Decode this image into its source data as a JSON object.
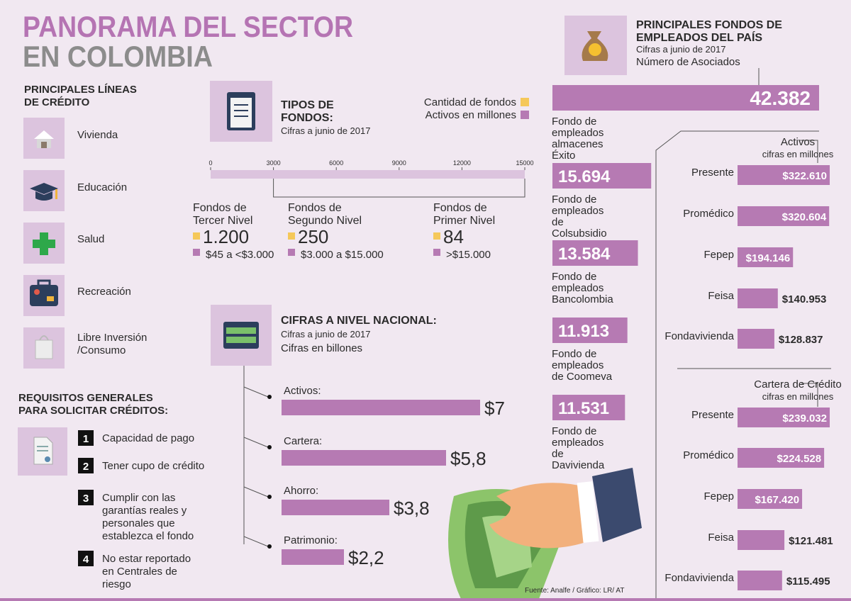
{
  "header": {
    "title": "PANORAMA DEL SECTOR",
    "subtitle": "EN COLOMBIA"
  },
  "credit_lines": {
    "title": [
      "PRINCIPALES LÍNEAS",
      "DE CRÉDITO"
    ],
    "items": [
      [
        "Vivienda"
      ],
      [
        "Educación"
      ],
      [
        "Salud"
      ],
      [
        "Recreación"
      ],
      [
        "Libre Inversión",
        "/Consumo"
      ]
    ]
  },
  "requirements": {
    "title": [
      "REQUISITOS GENERALES",
      "PARA SOLICITAR CRÉDITOS:"
    ],
    "items": [
      {
        "number": "1",
        "lines": [
          "Capacidad de pago"
        ]
      },
      {
        "number": "2",
        "lines": [
          "Tener cupo de crédito"
        ]
      },
      {
        "number": "3",
        "lines": [
          "Cumplir con las",
          "garantías reales y",
          "personales que",
          "establezca el fondo"
        ]
      },
      {
        "number": "4",
        "lines": [
          "No estar reportado",
          "en Centrales de",
          "riesgo"
        ]
      }
    ]
  },
  "fund_types": {
    "title": [
      "TIPOS DE",
      "FONDOS:"
    ],
    "subtitle": "Cifras a junio de 2017",
    "legend": [
      {
        "name": "Cantidad de fondos",
        "color": "#f5c85a"
      },
      {
        "name": "Activos en millones",
        "color": "#b67ab3"
      }
    ],
    "xlim": [
      0,
      15000
    ],
    "xticks": [
      0,
      3000,
      6000,
      9000,
      12000,
      15000
    ],
    "groups": [
      {
        "name": [
          "Fondos de",
          "Tercer Nivel"
        ],
        "count": "1.200",
        "range": "$45 a <$3.000"
      },
      {
        "name": [
          "Fondos de",
          "Segundo Nivel"
        ],
        "count": "250",
        "range": "$3.000 a $15.000"
      },
      {
        "name": [
          "Fondos de",
          "Primer Nivel"
        ],
        "count": "84",
        "range": ">$15.000"
      }
    ]
  },
  "national": {
    "title": "CIFRAS A NIVEL NACIONAL:",
    "subtitle": [
      "Cifras a junio de 2017",
      "Cifras en billones"
    ],
    "items": [
      {
        "name": "Activos:",
        "value": 7,
        "value_label": "$7"
      },
      {
        "name": "Cartera:",
        "value": 5.8,
        "value_label": "$5,8"
      },
      {
        "name": "Ahorro:",
        "value": 3.8,
        "value_label": "$3,8"
      },
      {
        "name": "Patrimonio:",
        "value": 2.2,
        "value_label": "$2,2"
      }
    ]
  },
  "employee_funds": {
    "title": [
      "PRINCIPALES FONDOS DE",
      "EMPLEADOS DEL PAÍS"
    ],
    "subtitle": "Cifras a junio de 2017",
    "metric": "Número de Asociados",
    "items": [
      {
        "value": 42382,
        "value_label": "42.382",
        "name": [
          "Fondo de",
          "empleados",
          "almacenes",
          "Éxito"
        ]
      },
      {
        "value": 15694,
        "value_label": "15.694",
        "name": [
          "Fondo de",
          "empleados",
          "de",
          "Colsubsidio"
        ]
      },
      {
        "value": 13584,
        "value_label": "13.584",
        "name": [
          "Fondo de",
          "empleados",
          "Bancolombia"
        ]
      },
      {
        "value": 11913,
        "value_label": "11.913",
        "name": [
          "Fondo de",
          "empleados",
          "de Coomeva"
        ]
      },
      {
        "value": 11531,
        "value_label": "11.531",
        "name": [
          "Fondo de",
          "empleados",
          "de",
          "Davivienda"
        ]
      }
    ]
  },
  "assets": {
    "title": "Activos",
    "subtitle": "cifras en millones",
    "items": [
      {
        "name": "Presente",
        "value": 322610,
        "value_label": "$322.610"
      },
      {
        "name": "Promédico",
        "value": 320604,
        "value_label": "$320.604"
      },
      {
        "name": "Fepep",
        "value": 194146,
        "value_label": "$194.146"
      },
      {
        "name": "Feisa",
        "value": 140953,
        "value_label": "$140.953"
      },
      {
        "name": "Fondavivienda",
        "value": 128837,
        "value_label": "$128.837"
      }
    ]
  },
  "portfolio": {
    "title": "Cartera de Crédito",
    "subtitle": "cifras en millones",
    "items": [
      {
        "name": "Presente",
        "value": 239032,
        "value_label": "$239.032"
      },
      {
        "name": "Promédico",
        "value": 224528,
        "value_label": "$224.528"
      },
      {
        "name": "Fepep",
        "value": 167420,
        "value_label": "$167.420"
      },
      {
        "name": "Feisa",
        "value": 121481,
        "value_label": "$121.481"
      },
      {
        "name": "Fondavivienda",
        "value": 115495,
        "value_label": "$115.495"
      }
    ]
  },
  "source": "Fuente: Analfe / Gráfico: LR/ AT"
}
